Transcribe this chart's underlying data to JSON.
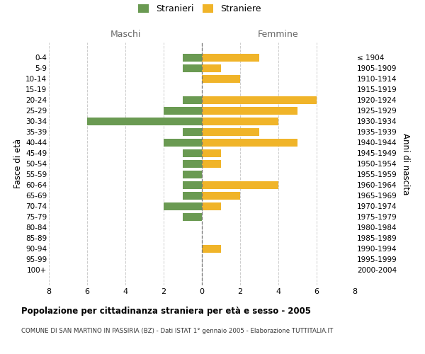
{
  "age_groups": [
    "0-4",
    "5-9",
    "10-14",
    "15-19",
    "20-24",
    "25-29",
    "30-34",
    "35-39",
    "40-44",
    "45-49",
    "50-54",
    "55-59",
    "60-64",
    "65-69",
    "70-74",
    "75-79",
    "80-84",
    "85-89",
    "90-94",
    "95-99",
    "100+"
  ],
  "birth_years": [
    "2000-2004",
    "1995-1999",
    "1990-1994",
    "1985-1989",
    "1980-1984",
    "1975-1979",
    "1970-1974",
    "1965-1969",
    "1960-1964",
    "1955-1959",
    "1950-1954",
    "1945-1949",
    "1940-1944",
    "1935-1939",
    "1930-1934",
    "1925-1929",
    "1920-1924",
    "1915-1919",
    "1910-1914",
    "1905-1909",
    "≤ 1904"
  ],
  "maschi": [
    1,
    1,
    0,
    0,
    1,
    2,
    6,
    1,
    2,
    1,
    1,
    1,
    1,
    1,
    2,
    1,
    0,
    0,
    0,
    0,
    0
  ],
  "femmine": [
    3,
    1,
    2,
    0,
    6,
    5,
    4,
    3,
    5,
    1,
    1,
    0,
    4,
    2,
    1,
    0,
    0,
    0,
    1,
    0,
    0
  ],
  "maschi_color": "#6a9a52",
  "femmine_color": "#f0b429",
  "title": "Popolazione per cittadinanza straniera per età e sesso - 2005",
  "subtitle": "COMUNE DI SAN MARTINO IN PASSIRIA (BZ) - Dati ISTAT 1° gennaio 2005 - Elaborazione TUTTITALIA.IT",
  "ylabel_left": "Fasce di età",
  "ylabel_right": "Anni di nascita",
  "xlabel_left": "Maschi",
  "xlabel_right": "Femmine",
  "legend_maschi": "Stranieri",
  "legend_femmine": "Straniere",
  "xlim": 8,
  "background_color": "#ffffff",
  "grid_color": "#cccccc"
}
